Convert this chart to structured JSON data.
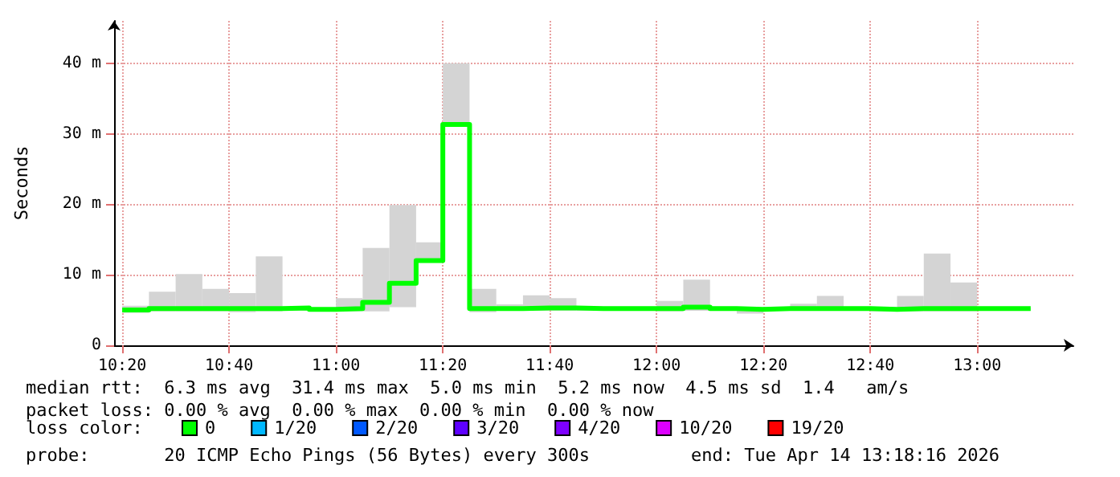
{
  "chart_data": {
    "type": "step",
    "ylabel": "Seconds",
    "legend_title": "loss color:",
    "legend": "bottom",
    "grid": true,
    "marker": "none",
    "line_style": "solid",
    "xlim": [
      10.308,
      13.3
    ],
    "xticks": [
      {
        "value": 10.3333,
        "label": "10:20"
      },
      {
        "value": 10.6667,
        "label": "10:40"
      },
      {
        "value": 11,
        "label": "11:00"
      },
      {
        "value": 11.3333,
        "label": "11:20"
      },
      {
        "value": 11.6667,
        "label": "11:40"
      },
      {
        "value": 12,
        "label": "12:00"
      },
      {
        "value": 12.3333,
        "label": "12:20"
      },
      {
        "value": 12.6667,
        "label": "12:40"
      },
      {
        "value": 13,
        "label": "13:00"
      }
    ],
    "ylim": [
      0,
      46
    ],
    "yticks": [
      0,
      {
        "value": 10,
        "label": "10 m"
      },
      {
        "value": 20,
        "label": "20 m"
      },
      {
        "value": 30,
        "label": "30 m"
      },
      {
        "value": 40,
        "label": "40 m"
      }
    ],
    "x": [
      10.3333,
      10.4167,
      10.5,
      10.5833,
      10.6667,
      10.75,
      10.8333,
      10.9167,
      11,
      11.0833,
      11.1667,
      11.25,
      11.3333,
      11.4167,
      11.5,
      11.5833,
      11.6667,
      11.75,
      11.8333,
      11.9167,
      12,
      12.0833,
      12.1667,
      12.25,
      12.3333,
      12.4167,
      12.5,
      12.5833,
      12.6667,
      12.75,
      12.8333,
      12.9167,
      13,
      13.0833,
      13.1667
    ],
    "series": [
      {
        "name": "0",
        "color": "#00ff00",
        "values": [
          5.0,
          5.2,
          5.2,
          5.2,
          5.2,
          5.2,
          5.3,
          5.1,
          5.2,
          6.1,
          8.8,
          12.0,
          31.3,
          5.2,
          5.2,
          5.3,
          5.3,
          5.2,
          5.2,
          5.2,
          5.2,
          5.4,
          5.2,
          5.1,
          5.2,
          5.2,
          5.2,
          5.2,
          5.1,
          5.2,
          5.2,
          5.2,
          5.2,
          5.2,
          5.2
        ],
        "lower": [
          4.6,
          4.8,
          4.8,
          4.8,
          4.7,
          4.8,
          4.9,
          4.9,
          4.8,
          4.8,
          5.4,
          11.8,
          31.0,
          4.7,
          4.9,
          4.9,
          4.9,
          4.9,
          4.9,
          4.9,
          4.8,
          4.9,
          4.9,
          4.5,
          4.9,
          4.9,
          4.9,
          4.9,
          4.8,
          4.8,
          4.8,
          4.8,
          4.9,
          4.9,
          null
        ],
        "upper": [
          5.6,
          7.6,
          10.1,
          8.0,
          7.4,
          12.6,
          5.5,
          5.2,
          6.7,
          13.8,
          19.9,
          14.6,
          40.0,
          8.0,
          5.8,
          7.1,
          6.7,
          5.5,
          5.4,
          5.4,
          6.3,
          9.3,
          5.4,
          5.3,
          5.4,
          5.9,
          7.0,
          5.3,
          5.4,
          7.0,
          13.0,
          8.9,
          5.4,
          5.3,
          null
        ]
      },
      {
        "name": "1/20",
        "color": "#00b8ff",
        "values": [
          null,
          null,
          null,
          null,
          null,
          null,
          null,
          null,
          null,
          null,
          null,
          null,
          null,
          null,
          null,
          null,
          null,
          null,
          null,
          null,
          null,
          null,
          null,
          null,
          null,
          null,
          null,
          null,
          null,
          null,
          null,
          null,
          null,
          null,
          null
        ]
      },
      {
        "name": "2/20",
        "color": "#0059ff",
        "values": [
          null,
          null,
          null,
          null,
          null,
          null,
          null,
          null,
          null,
          null,
          null,
          null,
          null,
          null,
          null,
          null,
          null,
          null,
          null,
          null,
          null,
          null,
          null,
          null,
          null,
          null,
          null,
          null,
          null,
          null,
          null,
          null,
          null,
          null,
          null
        ]
      },
      {
        "name": "3/20",
        "color": "#5e00ff",
        "values": [
          null,
          null,
          null,
          null,
          null,
          null,
          null,
          null,
          null,
          null,
          null,
          null,
          null,
          null,
          null,
          null,
          null,
          null,
          null,
          null,
          null,
          null,
          null,
          null,
          null,
          null,
          null,
          null,
          null,
          null,
          null,
          null,
          null,
          null,
          null
        ]
      },
      {
        "name": "4/20",
        "color": "#7e00ff",
        "values": [
          null,
          null,
          null,
          null,
          null,
          null,
          null,
          null,
          null,
          null,
          null,
          null,
          null,
          null,
          null,
          null,
          null,
          null,
          null,
          null,
          null,
          null,
          null,
          null,
          null,
          null,
          null,
          null,
          null,
          null,
          null,
          null,
          null,
          null,
          null
        ]
      },
      {
        "name": "10/20",
        "color": "#dd00ff",
        "values": [
          null,
          null,
          null,
          null,
          null,
          null,
          null,
          null,
          null,
          null,
          null,
          null,
          null,
          null,
          null,
          null,
          null,
          null,
          null,
          null,
          null,
          null,
          null,
          null,
          null,
          null,
          null,
          null,
          null,
          null,
          null,
          null,
          null,
          null,
          null
        ]
      },
      {
        "name": "19/20",
        "color": "#ff0000",
        "values": [
          null,
          null,
          null,
          null,
          null,
          null,
          null,
          null,
          null,
          null,
          null,
          null,
          null,
          null,
          null,
          null,
          null,
          null,
          null,
          null,
          null,
          null,
          null,
          null,
          null,
          null,
          null,
          null,
          null,
          null,
          null,
          null,
          null,
          null,
          null
        ]
      }
    ],
    "annotations": [
      "median rtt:  6.3 ms avg  31.4 ms max  5.0 ms min  5.2 ms now  4.5 ms sd  1.4   am/s",
      "packet loss: 0.00 % avg  0.00 % max  0.00 % min  0.00 % now",
      "probe:       20 ICMP Echo Pings (56 Bytes) every 300s",
      "end: Tue Apr 14 13:18:16 2026"
    ]
  }
}
